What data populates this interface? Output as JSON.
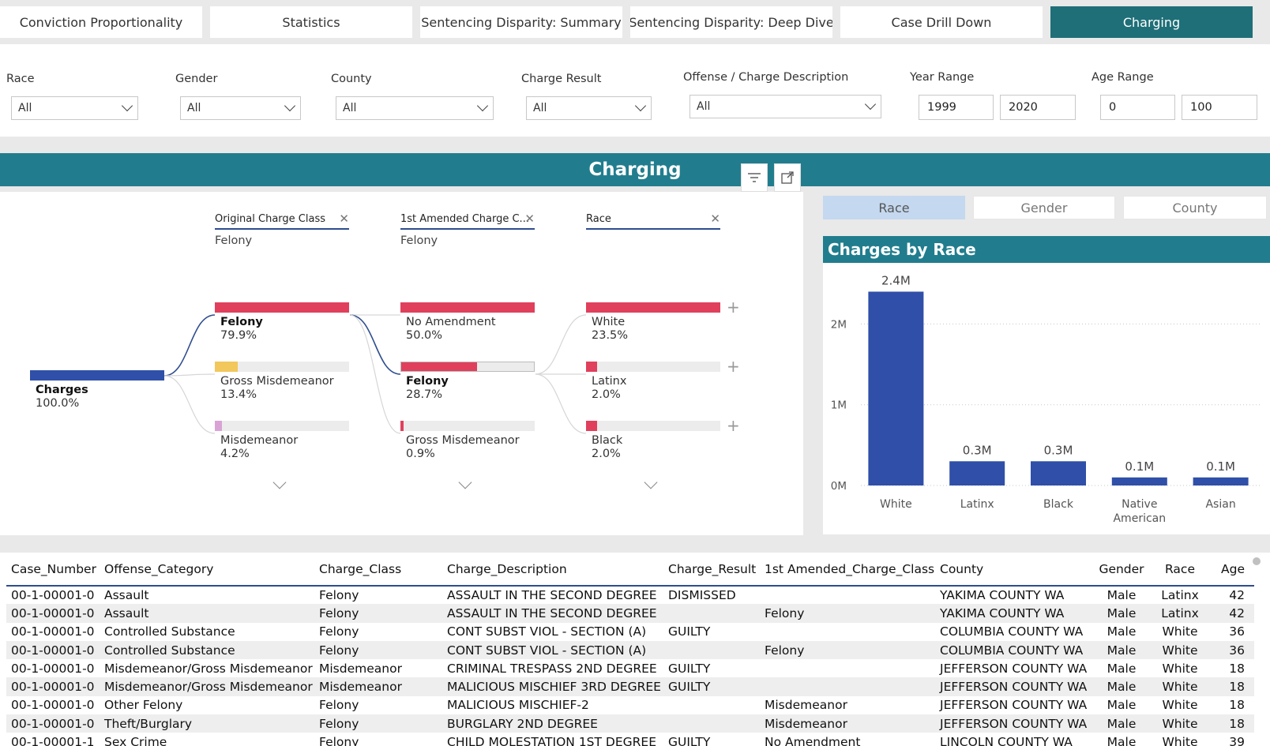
{
  "tabs": [
    {
      "label": "Conviction Proportionality",
      "active": false
    },
    {
      "label": "Statistics",
      "active": false
    },
    {
      "label": "Sentencing Disparity: Summary",
      "active": false
    },
    {
      "label": "Sentencing Disparity: Deep Dive",
      "active": false
    },
    {
      "label": "Case Drill Down",
      "active": false
    },
    {
      "label": "Charging",
      "active": true
    }
  ],
  "filters": {
    "race": {
      "label": "Race",
      "value": "All"
    },
    "gender": {
      "label": "Gender",
      "value": "All"
    },
    "county": {
      "label": "County",
      "value": "All"
    },
    "charge_result": {
      "label": "Charge Result",
      "value": "All"
    },
    "offense": {
      "label": "Offense / Charge Description",
      "value": "All"
    },
    "year_range": {
      "label": "Year Range",
      "from": "1999",
      "to": "2020"
    },
    "age_range": {
      "label": "Age Range",
      "from": "0",
      "to": "100"
    }
  },
  "banner": {
    "title": "Charging"
  },
  "decomp": {
    "levels": [
      {
        "header": "Original Charge Class",
        "value": "Felony"
      },
      {
        "header": "1st Amended Charge C...",
        "value": "Felony"
      },
      {
        "header": "Race",
        "value": ""
      }
    ],
    "root": {
      "label": "Charges",
      "pct": "100.0%"
    },
    "col1": [
      {
        "label": "Felony",
        "pct": "79.9%",
        "bold": true,
        "fill": 1.0,
        "color": "#e0405c"
      },
      {
        "label": "Gross Misdemeanor",
        "pct": "13.4%",
        "bold": false,
        "fill": 0.168,
        "color": "#f2c75c"
      },
      {
        "label": "Misdemeanor",
        "pct": "4.2%",
        "bold": false,
        "fill": 0.053,
        "color": "#d9a3d6"
      }
    ],
    "col2": [
      {
        "label": "No Amendment",
        "pct": "50.0%",
        "bold": false,
        "fill": 1.0,
        "color": "#e0405c"
      },
      {
        "label": "Felony",
        "pct": "28.7%",
        "bold": true,
        "fill": 0.574,
        "color": "#e0405c"
      },
      {
        "label": "Gross Misdemeanor",
        "pct": "0.9%",
        "bold": false,
        "fill": 0.018,
        "color": "#e0405c"
      }
    ],
    "col3": [
      {
        "label": "White",
        "pct": "23.5%",
        "bold": false,
        "fill": 1.0,
        "color": "#e0405c"
      },
      {
        "label": "Latinx",
        "pct": "2.0%",
        "bold": false,
        "fill": 0.085,
        "color": "#e0405c"
      },
      {
        "label": "Black",
        "pct": "2.0%",
        "bold": false,
        "fill": 0.085,
        "color": "#e0405c"
      }
    ],
    "plus": "+"
  },
  "toggles": [
    {
      "label": "Race",
      "selected": true
    },
    {
      "label": "Gender",
      "selected": false
    },
    {
      "label": "County",
      "selected": false
    }
  ],
  "chart_data": {
    "type": "bar",
    "title": "Charges by Race",
    "categories": [
      "White",
      "Latinx",
      "Black",
      "Native American",
      "Asian"
    ],
    "values": [
      2400000,
      300000,
      300000,
      100000,
      100000
    ],
    "data_labels": [
      "2.4M",
      "0.3M",
      "0.3M",
      "0.1M",
      "0.1M"
    ],
    "yticks": [
      "0M",
      "1M",
      "2M"
    ],
    "ylim": [
      0,
      2600000
    ],
    "bar_color": "#2f4fa8",
    "grid": true
  },
  "table": {
    "columns": [
      "Case_Number",
      "Offense_Category",
      "Charge_Class",
      "Charge_Description",
      "Charge_Result",
      "1st Amended_Charge_Class",
      "County",
      "Gender",
      "Race",
      "Age"
    ],
    "rows": [
      [
        "00-1-00001-0",
        "Assault",
        "Felony",
        "ASSAULT IN THE SECOND DEGREE",
        "DISMISSED",
        "",
        "YAKIMA COUNTY WA",
        "Male",
        "Latinx",
        "42"
      ],
      [
        "00-1-00001-0",
        "Assault",
        "Felony",
        "ASSAULT IN THE SECOND DEGREE",
        "",
        "Felony",
        "YAKIMA COUNTY WA",
        "Male",
        "Latinx",
        "42"
      ],
      [
        "00-1-00001-0",
        "Controlled Substance",
        "Felony",
        "CONT SUBST VIOL - SECTION (A)",
        "GUILTY",
        "",
        "COLUMBIA COUNTY WA",
        "Male",
        "White",
        "36"
      ],
      [
        "00-1-00001-0",
        "Controlled Substance",
        "Felony",
        "CONT SUBST VIOL - SECTION (A)",
        "",
        "Felony",
        "COLUMBIA COUNTY WA",
        "Male",
        "White",
        "36"
      ],
      [
        "00-1-00001-0",
        "Misdemeanor/Gross Misdemeanor",
        "Misdemeanor",
        "CRIMINAL TRESPASS 2ND DEGREE",
        "GUILTY",
        "",
        "JEFFERSON COUNTY WA",
        "Male",
        "White",
        "18"
      ],
      [
        "00-1-00001-0",
        "Misdemeanor/Gross Misdemeanor",
        "Misdemeanor",
        "MALICIOUS MISCHIEF 3RD DEGREE",
        "GUILTY",
        "",
        "JEFFERSON COUNTY WA",
        "Male",
        "White",
        "18"
      ],
      [
        "00-1-00001-0",
        "Other Felony",
        "Felony",
        "MALICIOUS MISCHIEF-2",
        "",
        "Misdemeanor",
        "JEFFERSON COUNTY WA",
        "Male",
        "White",
        "18"
      ],
      [
        "00-1-00001-0",
        "Theft/Burglary",
        "Felony",
        "BURGLARY 2ND DEGREE",
        "",
        "Misdemeanor",
        "JEFFERSON COUNTY WA",
        "Male",
        "White",
        "18"
      ],
      [
        "00-1-00001-1",
        "Sex Crime",
        "Felony",
        "CHILD MOLESTATION 1ST DEGREE",
        "GUILTY",
        "No Amendment",
        "LINCOLN COUNTY WA",
        "Male",
        "White",
        "39"
      ]
    ]
  }
}
